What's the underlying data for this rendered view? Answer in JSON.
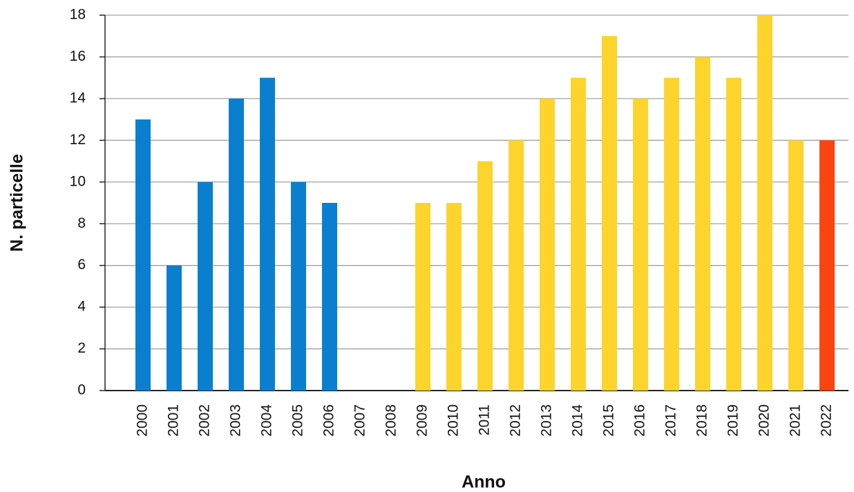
{
  "chart_data": {
    "type": "bar",
    "xlabel": "Anno",
    "ylabel": "N. particelle",
    "categories": [
      "2000",
      "2001",
      "2002",
      "2003",
      "2004",
      "2005",
      "2006",
      "2007",
      "2008",
      "2009",
      "2010",
      "2011",
      "2012",
      "2013",
      "2014",
      "2015",
      "2016",
      "2017",
      "2018",
      "2019",
      "2020",
      "2021",
      "2022"
    ],
    "values": [
      13,
      6,
      10,
      14,
      15,
      10,
      9,
      null,
      null,
      9,
      9,
      11,
      12,
      14,
      15,
      17,
      14,
      15,
      16,
      15,
      18,
      12,
      12
    ],
    "colors": [
      "#0a7fcf",
      "#0a7fcf",
      "#0a7fcf",
      "#0a7fcf",
      "#0a7fcf",
      "#0a7fcf",
      "#0a7fcf",
      null,
      null,
      "#fcd42b",
      "#fcd42b",
      "#fcd42b",
      "#fcd42b",
      "#fcd42b",
      "#fcd42b",
      "#fcd42b",
      "#fcd42b",
      "#fcd42b",
      "#fcd42b",
      "#fcd42b",
      "#fcd42b",
      "#fcd42b",
      "#fc4411"
    ],
    "ylim": [
      0,
      18
    ],
    "yticks": [
      0,
      2,
      4,
      6,
      8,
      10,
      12,
      14,
      16,
      18
    ],
    "grid": true
  }
}
